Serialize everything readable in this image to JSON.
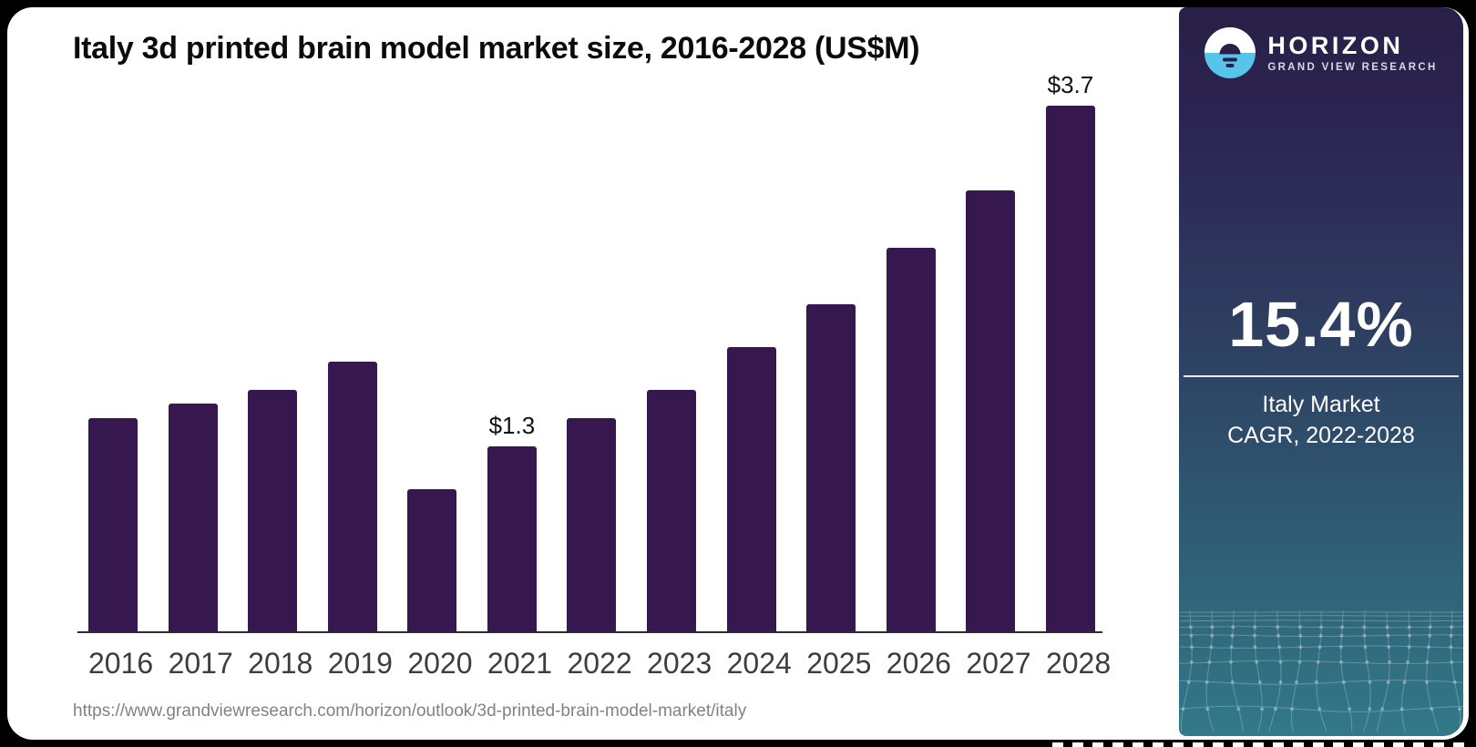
{
  "window": {
    "background": "#000000",
    "card_background": "#ffffff"
  },
  "chart": {
    "title": "Italy 3d printed brain model market size, 2016-2028 (US$M)",
    "source_url": "https://www.grandviewresearch.com/horizon/outlook/3d-printed-brain-model-market/italy",
    "bar_color": "#36184e",
    "axis_color": "#2b2b33",
    "tick_label_color": "#3d3d3d"
  },
  "chart_data": {
    "type": "bar",
    "title": "Italy 3d printed brain model market size, 2016-2028 (US$M)",
    "categories": [
      "2016",
      "2017",
      "2018",
      "2019",
      "2020",
      "2021",
      "2022",
      "2023",
      "2024",
      "2025",
      "2026",
      "2027",
      "2028"
    ],
    "values": [
      1.5,
      1.6,
      1.7,
      1.9,
      1.0,
      1.3,
      1.5,
      1.7,
      2.0,
      2.3,
      2.7,
      3.1,
      3.7
    ],
    "value_labels": [
      "",
      "",
      "",
      "",
      "",
      "$1.3",
      "",
      "",
      "",
      "",
      "",
      "",
      "$3.7"
    ],
    "unit": "US$M",
    "xlabel": "",
    "ylabel": "",
    "ylim": [
      0,
      4
    ],
    "grid": false,
    "legend": false,
    "bar_color": "#36184e"
  },
  "sidebar": {
    "brand": "HORIZON",
    "brand_sub": "GRAND VIEW RESEARCH",
    "stat_value": "15.4%",
    "stat_label_line1": "Italy Market",
    "stat_label_line2": "CAGR, 2022-2028",
    "gradient_top": "#2a2047",
    "gradient_bottom": "#32798a",
    "logo_blue": "#57c4e9",
    "logo_dark": "#2b2148"
  }
}
